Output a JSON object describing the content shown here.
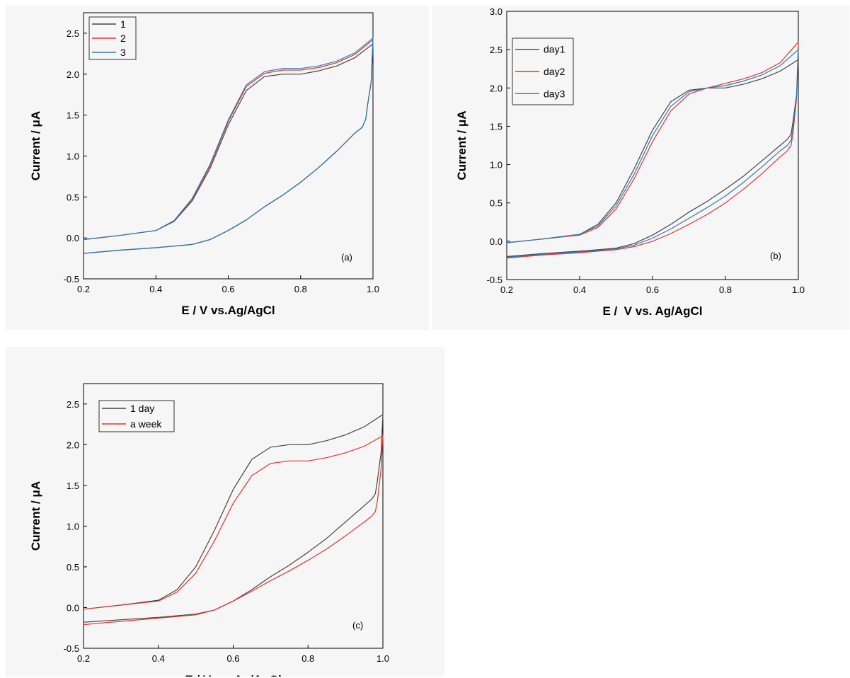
{
  "chart_data": [
    {
      "type": "line",
      "panel_label": "(a)",
      "xlabel": "E / V vs.Ag/AgCl",
      "ylabel": "Current / μA",
      "xlim": [
        0.2,
        1.0
      ],
      "ylim": [
        -0.5,
        2.75
      ],
      "xticks": [
        "0.2",
        "0.4",
        "0.6",
        "0.8",
        "1.0"
      ],
      "yticks": [
        "-0.5",
        "0.0",
        "0.5",
        "1.0",
        "1.5",
        "2.0",
        "2.5"
      ],
      "legend_position": "top-left",
      "series": [
        {
          "name": "1",
          "color": "#444444",
          "x": [
            0.2,
            0.3,
            0.4,
            0.45,
            0.5,
            0.55,
            0.6,
            0.65,
            0.7,
            0.75,
            0.8,
            0.85,
            0.9,
            0.95,
            1.0,
            0.995,
            0.985,
            0.98,
            0.97,
            0.95,
            0.9,
            0.85,
            0.8,
            0.75,
            0.7,
            0.65,
            0.6,
            0.55,
            0.5,
            0.45,
            0.4,
            0.3,
            0.2
          ],
          "y": [
            -0.02,
            0.03,
            0.09,
            0.2,
            0.45,
            0.85,
            1.38,
            1.8,
            1.97,
            2.0,
            2.0,
            2.04,
            2.1,
            2.2,
            2.37,
            1.9,
            1.62,
            1.45,
            1.35,
            1.28,
            1.06,
            0.86,
            0.68,
            0.52,
            0.38,
            0.22,
            0.09,
            -0.02,
            -0.08,
            -0.1,
            -0.12,
            -0.15,
            -0.19
          ]
        },
        {
          "name": "2",
          "color": "#e8302b",
          "x": [
            0.2,
            0.3,
            0.4,
            0.45,
            0.5,
            0.55,
            0.6,
            0.65,
            0.7,
            0.75,
            0.8,
            0.85,
            0.9,
            0.95,
            1.0,
            0.995,
            0.985,
            0.98,
            0.97,
            0.95,
            0.9,
            0.85,
            0.8,
            0.75,
            0.7,
            0.65,
            0.6,
            0.55,
            0.5,
            0.45,
            0.4,
            0.3,
            0.2
          ],
          "y": [
            -0.02,
            0.03,
            0.09,
            0.21,
            0.47,
            0.88,
            1.42,
            1.85,
            2.01,
            2.05,
            2.05,
            2.08,
            2.14,
            2.24,
            2.42,
            1.9,
            1.62,
            1.45,
            1.35,
            1.28,
            1.06,
            0.86,
            0.68,
            0.52,
            0.38,
            0.22,
            0.09,
            -0.02,
            -0.08,
            -0.1,
            -0.12,
            -0.15,
            -0.19
          ]
        },
        {
          "name": "3",
          "color": "#2a7bb8",
          "x": [
            0.2,
            0.3,
            0.4,
            0.45,
            0.5,
            0.55,
            0.6,
            0.65,
            0.7,
            0.75,
            0.8,
            0.85,
            0.9,
            0.95,
            1.0,
            0.995,
            0.985,
            0.98,
            0.97,
            0.95,
            0.9,
            0.85,
            0.8,
            0.75,
            0.7,
            0.65,
            0.6,
            0.55,
            0.5,
            0.45,
            0.4,
            0.3,
            0.2
          ],
          "y": [
            -0.02,
            0.03,
            0.09,
            0.21,
            0.48,
            0.9,
            1.44,
            1.87,
            2.03,
            2.07,
            2.07,
            2.1,
            2.16,
            2.26,
            2.44,
            1.9,
            1.62,
            1.45,
            1.35,
            1.28,
            1.06,
            0.86,
            0.68,
            0.52,
            0.38,
            0.22,
            0.09,
            -0.02,
            -0.08,
            -0.1,
            -0.12,
            -0.15,
            -0.19
          ]
        }
      ]
    },
    {
      "type": "line",
      "panel_label": "(b)",
      "xlabel": "E /  V vs. Ag/AgCl",
      "ylabel": "Current / μA",
      "xlim": [
        0.2,
        1.0
      ],
      "ylim": [
        -0.5,
        3.0
      ],
      "xticks": [
        "0.2",
        "0.4",
        "0.6",
        "0.8",
        "1.0"
      ],
      "yticks": [
        "-0.5",
        "0.0",
        "0.5",
        "1.0",
        "1.5",
        "2.0",
        "2.5",
        "3.0"
      ],
      "legend_position": "top-left",
      "series": [
        {
          "name": "day1",
          "color": "#444444",
          "x": [
            0.2,
            0.3,
            0.4,
            0.45,
            0.5,
            0.55,
            0.6,
            0.65,
            0.7,
            0.75,
            0.8,
            0.85,
            0.9,
            0.95,
            1.0,
            0.995,
            0.985,
            0.98,
            0.97,
            0.95,
            0.9,
            0.85,
            0.8,
            0.75,
            0.7,
            0.65,
            0.6,
            0.55,
            0.5,
            0.45,
            0.4,
            0.3,
            0.2
          ],
          "y": [
            -0.02,
            0.03,
            0.09,
            0.22,
            0.5,
            0.95,
            1.45,
            1.82,
            1.97,
            2.0,
            2.0,
            2.05,
            2.12,
            2.22,
            2.37,
            1.9,
            1.55,
            1.4,
            1.33,
            1.25,
            1.05,
            0.85,
            0.68,
            0.52,
            0.38,
            0.22,
            0.08,
            -0.03,
            -0.09,
            -0.11,
            -0.13,
            -0.16,
            -0.2
          ]
        },
        {
          "name": "day2",
          "color": "#e8302b",
          "x": [
            0.2,
            0.3,
            0.4,
            0.45,
            0.5,
            0.55,
            0.6,
            0.65,
            0.7,
            0.75,
            0.8,
            0.85,
            0.9,
            0.95,
            1.0,
            0.995,
            0.985,
            0.98,
            0.97,
            0.95,
            0.9,
            0.85,
            0.8,
            0.75,
            0.7,
            0.65,
            0.6,
            0.55,
            0.5,
            0.45,
            0.4,
            0.3,
            0.2
          ],
          "y": [
            -0.02,
            0.03,
            0.08,
            0.18,
            0.42,
            0.82,
            1.3,
            1.7,
            1.92,
            2.0,
            2.06,
            2.12,
            2.2,
            2.33,
            2.6,
            1.85,
            1.4,
            1.25,
            1.18,
            1.1,
            0.88,
            0.68,
            0.5,
            0.35,
            0.22,
            0.1,
            0.0,
            -0.07,
            -0.11,
            -0.13,
            -0.15,
            -0.18,
            -0.22
          ]
        },
        {
          "name": "day3",
          "color": "#2a7bb8",
          "x": [
            0.2,
            0.3,
            0.4,
            0.45,
            0.5,
            0.55,
            0.6,
            0.65,
            0.7,
            0.75,
            0.8,
            0.85,
            0.9,
            0.95,
            1.0,
            0.995,
            0.985,
            0.98,
            0.97,
            0.95,
            0.9,
            0.85,
            0.8,
            0.75,
            0.7,
            0.65,
            0.6,
            0.55,
            0.5,
            0.45,
            0.4,
            0.3,
            0.2
          ],
          "y": [
            -0.02,
            0.03,
            0.09,
            0.2,
            0.46,
            0.88,
            1.38,
            1.76,
            1.95,
            2.0,
            2.03,
            2.09,
            2.17,
            2.29,
            2.5,
            1.88,
            1.47,
            1.32,
            1.25,
            1.18,
            0.97,
            0.77,
            0.59,
            0.44,
            0.3,
            0.16,
            0.04,
            -0.05,
            -0.1,
            -0.12,
            -0.14,
            -0.17,
            -0.21
          ]
        }
      ]
    },
    {
      "type": "line",
      "panel_label": "(c)",
      "xlabel": "E / V vs. Ag/AgCl",
      "ylabel": "Current / μA",
      "xlim": [
        0.2,
        1.0
      ],
      "ylim": [
        -0.5,
        2.75
      ],
      "xticks": [
        "0.2",
        "0.4",
        "0.6",
        "0.8",
        "1.0"
      ],
      "yticks": [
        "-0.5",
        "0.0",
        "0.5",
        "1.0",
        "1.5",
        "2.0",
        "2.5"
      ],
      "legend_position": "top-left",
      "series": [
        {
          "name": "1 day",
          "color": "#444444",
          "x": [
            0.2,
            0.3,
            0.4,
            0.45,
            0.5,
            0.55,
            0.6,
            0.65,
            0.7,
            0.75,
            0.8,
            0.85,
            0.9,
            0.95,
            1.0,
            0.995,
            0.985,
            0.98,
            0.97,
            0.95,
            0.9,
            0.85,
            0.8,
            0.75,
            0.7,
            0.65,
            0.6,
            0.55,
            0.5,
            0.45,
            0.4,
            0.3,
            0.2
          ],
          "y": [
            -0.02,
            0.03,
            0.09,
            0.22,
            0.5,
            0.95,
            1.45,
            1.82,
            1.97,
            2.0,
            2.0,
            2.05,
            2.12,
            2.22,
            2.37,
            1.9,
            1.55,
            1.4,
            1.33,
            1.25,
            1.05,
            0.85,
            0.68,
            0.52,
            0.38,
            0.22,
            0.08,
            -0.03,
            -0.08,
            -0.1,
            -0.12,
            -0.15,
            -0.18
          ]
        },
        {
          "name": "a week",
          "color": "#e8302b",
          "x": [
            0.2,
            0.3,
            0.4,
            0.45,
            0.5,
            0.55,
            0.6,
            0.65,
            0.7,
            0.75,
            0.8,
            0.85,
            0.9,
            0.95,
            1.0,
            0.995,
            0.985,
            0.98,
            0.97,
            0.95,
            0.9,
            0.85,
            0.8,
            0.75,
            0.7,
            0.65,
            0.6,
            0.55,
            0.5,
            0.45,
            0.4,
            0.3,
            0.2
          ],
          "y": [
            -0.02,
            0.03,
            0.08,
            0.19,
            0.42,
            0.82,
            1.28,
            1.62,
            1.77,
            1.8,
            1.8,
            1.84,
            1.9,
            1.98,
            2.11,
            1.7,
            1.3,
            1.18,
            1.12,
            1.05,
            0.88,
            0.72,
            0.58,
            0.45,
            0.33,
            0.2,
            0.08,
            -0.03,
            -0.09,
            -0.11,
            -0.13,
            -0.17,
            -0.21
          ]
        }
      ]
    }
  ]
}
